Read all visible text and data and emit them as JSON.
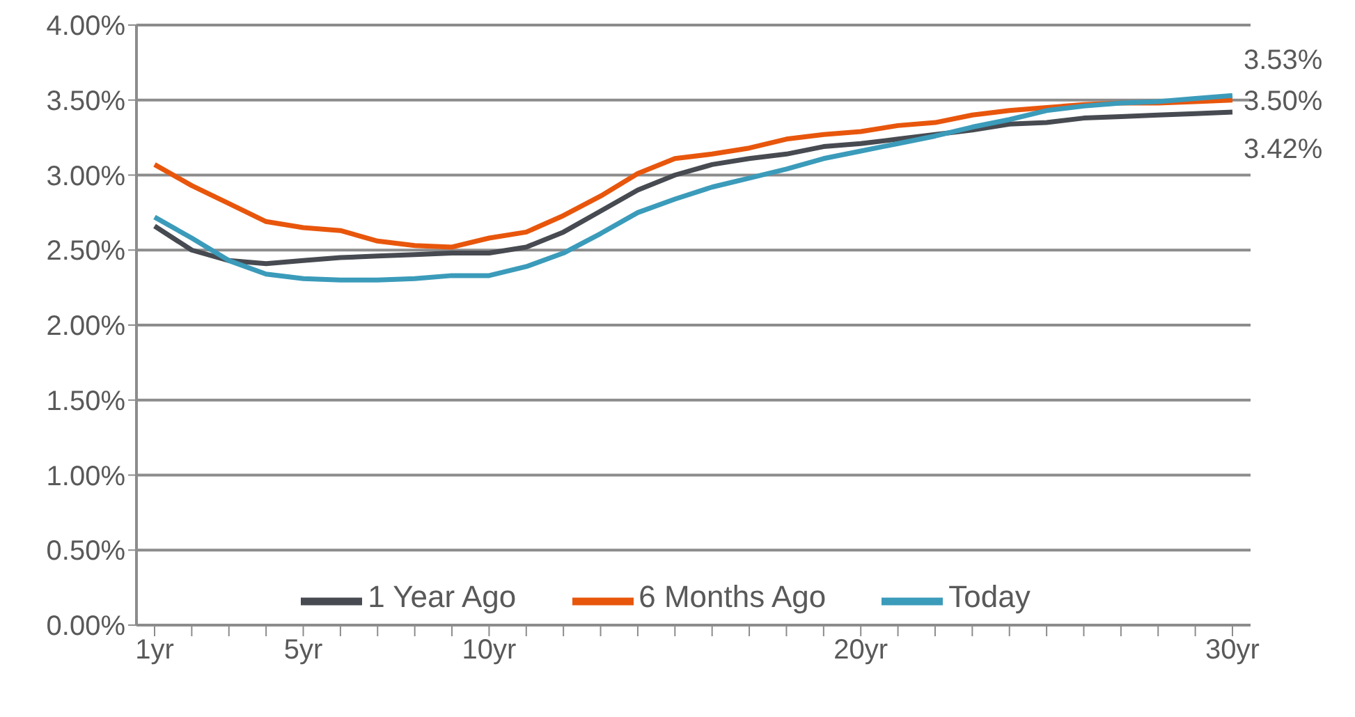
{
  "chart_data": {
    "type": "line",
    "categories": [
      "1yr",
      null,
      null,
      null,
      "5yr",
      null,
      null,
      null,
      null,
      "10yr",
      null,
      null,
      null,
      null,
      null,
      null,
      null,
      null,
      null,
      "20yr",
      null,
      null,
      null,
      null,
      null,
      null,
      null,
      null,
      null,
      "30yr"
    ],
    "series": [
      {
        "name": "1 Year Ago",
        "color": "#474b51",
        "values": [
          2.66,
          2.5,
          2.43,
          2.41,
          2.43,
          2.45,
          2.46,
          2.47,
          2.48,
          2.48,
          2.52,
          2.62,
          2.76,
          2.9,
          3.0,
          3.07,
          3.11,
          3.14,
          3.19,
          3.21,
          3.24,
          3.27,
          3.3,
          3.34,
          3.35,
          3.38,
          3.39,
          3.4,
          3.41,
          3.42
        ],
        "value_labels": [
          null,
          null,
          null,
          null,
          null,
          null,
          null,
          null,
          null,
          null,
          null,
          null,
          null,
          null,
          null,
          null,
          null,
          null,
          null,
          null,
          null,
          null,
          null,
          null,
          null,
          null,
          null,
          null,
          null,
          "3.42%"
        ]
      },
      {
        "name": "6 Months Ago",
        "color": "#e8560c",
        "values": [
          3.07,
          2.93,
          2.81,
          2.69,
          2.65,
          2.63,
          2.56,
          2.53,
          2.52,
          2.58,
          2.62,
          2.73,
          2.86,
          3.01,
          3.11,
          3.14,
          3.18,
          3.24,
          3.27,
          3.29,
          3.33,
          3.35,
          3.4,
          3.43,
          3.45,
          3.47,
          3.48,
          3.48,
          3.49,
          3.5
        ],
        "value_labels": [
          null,
          null,
          null,
          null,
          null,
          null,
          null,
          null,
          null,
          null,
          null,
          null,
          null,
          null,
          null,
          null,
          null,
          null,
          null,
          null,
          null,
          null,
          null,
          null,
          null,
          null,
          null,
          null,
          null,
          "3.50%"
        ]
      },
      {
        "name": "Today",
        "color": "#3b9bba",
        "values": [
          2.72,
          2.58,
          2.43,
          2.34,
          2.31,
          2.3,
          2.3,
          2.31,
          2.33,
          2.33,
          2.39,
          2.48,
          2.61,
          2.75,
          2.84,
          2.92,
          2.98,
          3.04,
          3.11,
          3.16,
          3.21,
          3.26,
          3.32,
          3.37,
          3.43,
          3.46,
          3.48,
          3.49,
          3.51,
          3.53
        ],
        "value_labels": [
          null,
          null,
          null,
          null,
          null,
          null,
          null,
          null,
          null,
          null,
          null,
          null,
          null,
          null,
          null,
          null,
          null,
          null,
          null,
          null,
          null,
          null,
          null,
          null,
          null,
          null,
          null,
          null,
          null,
          "3.53%"
        ]
      }
    ],
    "ylim": [
      0,
      4
    ],
    "yticks": [
      {
        "value": 0,
        "label": "0.00%"
      },
      {
        "value": 0.5,
        "label": "0.50%"
      },
      {
        "value": 1,
        "label": "1.00%"
      },
      {
        "value": 1.5,
        "label": "1.50%"
      },
      {
        "value": 2,
        "label": "2.00%"
      },
      {
        "value": 2.5,
        "label": "2.50%"
      },
      {
        "value": 3,
        "label": "3.00%"
      },
      {
        "value": 3.5,
        "label": "3.50%"
      },
      {
        "value": 4,
        "label": "4.00%"
      }
    ],
    "grid": "y",
    "legend": "bottom",
    "marker": "none",
    "line_style": "solid"
  }
}
